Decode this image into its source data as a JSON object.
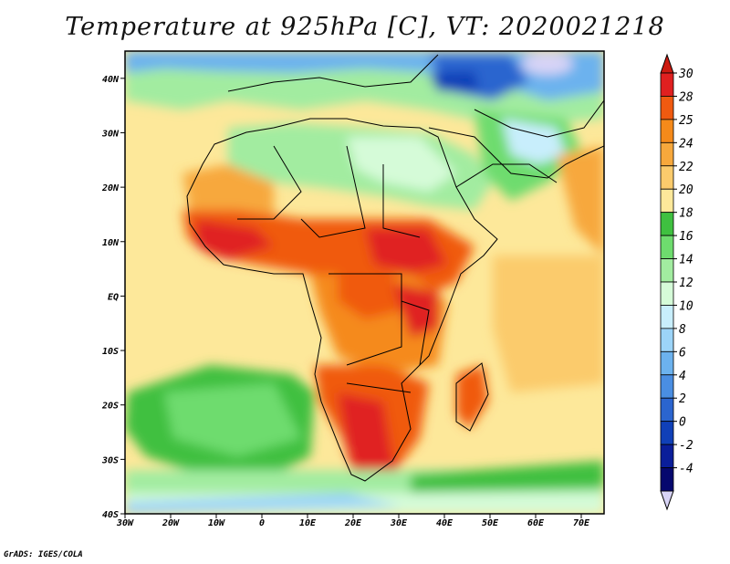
{
  "title": "Temperature at 925hPa [C], VT: 2020021218",
  "credit": "GrADS: IGES/COLA",
  "chart_data": {
    "type": "heatmap",
    "variable": "Temperature at 925hPa",
    "units": "C",
    "valid_time": "2020021218",
    "xlim": [
      -30,
      75
    ],
    "ylim": [
      -40,
      45
    ],
    "x_ticks": [
      {
        "value": -30,
        "label": "30W"
      },
      {
        "value": -20,
        "label": "20W"
      },
      {
        "value": -10,
        "label": "10W"
      },
      {
        "value": 0,
        "label": "0"
      },
      {
        "value": 10,
        "label": "10E"
      },
      {
        "value": 20,
        "label": "20E"
      },
      {
        "value": 30,
        "label": "30E"
      },
      {
        "value": 40,
        "label": "40E"
      },
      {
        "value": 50,
        "label": "50E"
      },
      {
        "value": 60,
        "label": "60E"
      },
      {
        "value": 70,
        "label": "70E"
      }
    ],
    "y_ticks": [
      {
        "value": 40,
        "label": "40N"
      },
      {
        "value": 30,
        "label": "30N"
      },
      {
        "value": 20,
        "label": "20N"
      },
      {
        "value": 10,
        "label": "10N"
      },
      {
        "value": 0,
        "label": "EQ"
      },
      {
        "value": -10,
        "label": "10S"
      },
      {
        "value": -20,
        "label": "20S"
      },
      {
        "value": -30,
        "label": "30S"
      },
      {
        "value": -40,
        "label": "40S"
      }
    ],
    "colorbar": {
      "labels": [
        "30",
        "28",
        "25",
        "24",
        "22",
        "20",
        "18",
        "16",
        "14",
        "12",
        "10",
        "8",
        "6",
        "4",
        "2",
        "0",
        "-2",
        "-4"
      ],
      "colors": [
        "#e02020",
        "#f05a10",
        "#f58a1a",
        "#f7a83c",
        "#fbcb6c",
        "#fde89a",
        "#3fc040",
        "#6edc6e",
        "#a2eca0",
        "#d5fbd8",
        "#c8eefc",
        "#9cd4f8",
        "#6cb2ee",
        "#4a8ee2",
        "#2b65cf",
        "#1040b8",
        "#0a1e9a",
        "#06086e"
      ],
      "top_arrow_color": "#cc1a10",
      "bottom_arrow_color": "#d8d4f6"
    }
  }
}
